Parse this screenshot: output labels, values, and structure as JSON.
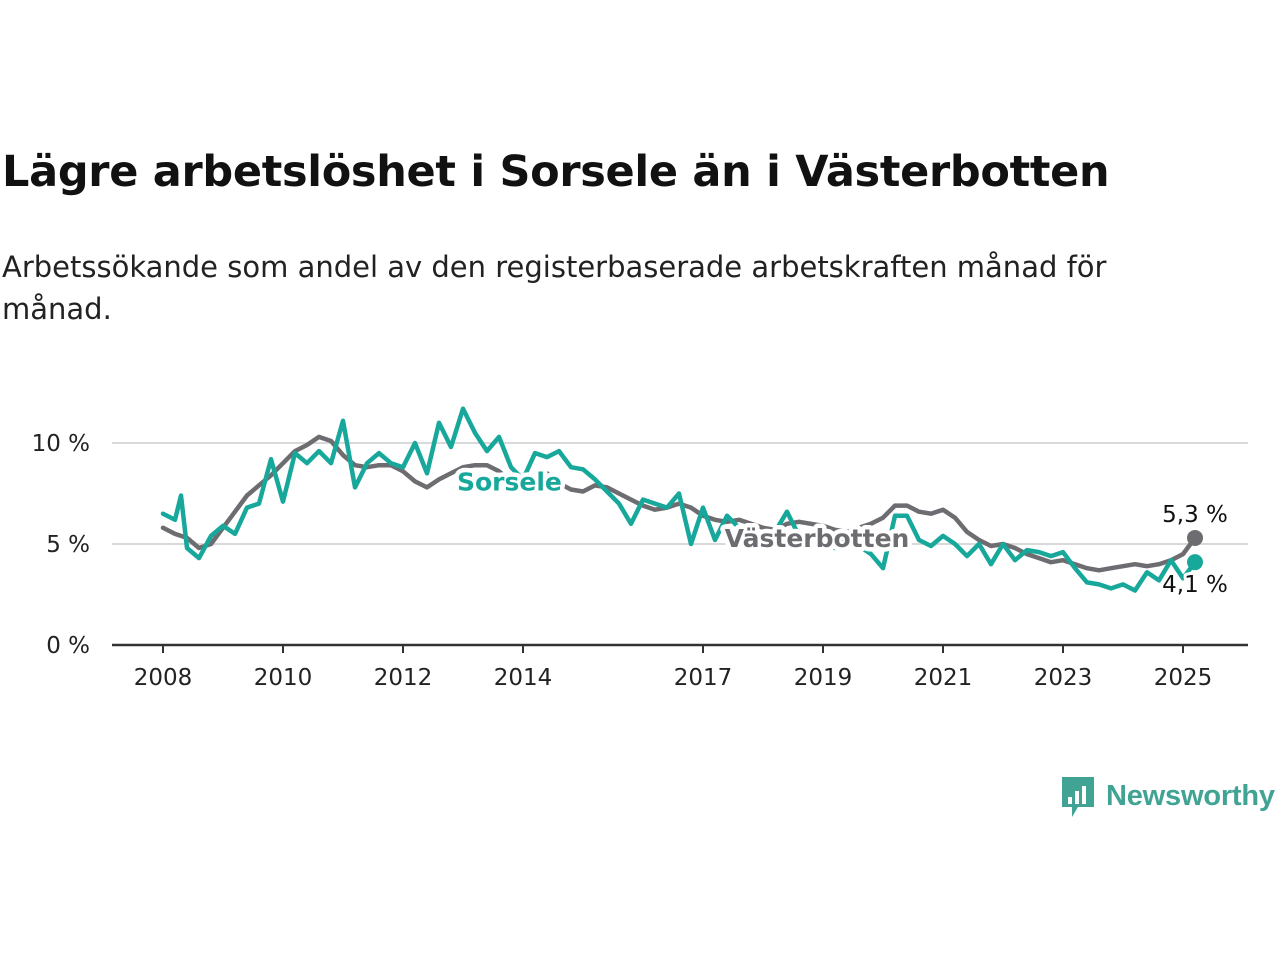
{
  "header": {
    "title": "Lägre arbetslöshet i Sorsele än i Västerbotten",
    "subtitle": "Arbetssökande som andel av den registerbaserade arbetskraften månad för månad."
  },
  "brand": {
    "name": "Newsworthy",
    "color": "#41a394",
    "icon": "newsworthy-logo-icon"
  },
  "colors": {
    "sorsele": "#17a89b",
    "vasterbotten": "#6d6c70",
    "grid": "#d9d9d9",
    "axis": "#333333"
  },
  "chart_data": {
    "type": "line",
    "title": "Lägre arbetslöshet i Sorsele än i Västerbotten",
    "subtitle": "Arbetssökande som andel av den registerbaserade arbetskraften månad för månad.",
    "xlim": [
      2008.0,
      2026.15
    ],
    "ylim": [
      0,
      11.5
    ],
    "x_ticks": [
      2008,
      2010,
      2012,
      2014,
      2017,
      2019,
      2021,
      2023,
      2025
    ],
    "y_ticks": [
      {
        "value": 0,
        "label": "0 %"
      },
      {
        "value": 5,
        "label": "5 %"
      },
      {
        "value": 10,
        "label": "10 %"
      }
    ],
    "grid": true,
    "legend": "inline labels",
    "series": [
      {
        "name": "Västerbotten",
        "color": "#6d6c70",
        "end_label": "5,3 %",
        "points": [
          [
            2008.0,
            5.8
          ],
          [
            2008.2,
            5.5
          ],
          [
            2008.4,
            5.3
          ],
          [
            2008.6,
            4.8
          ],
          [
            2008.8,
            5.0
          ],
          [
            2009.0,
            5.8
          ],
          [
            2009.2,
            6.6
          ],
          [
            2009.4,
            7.4
          ],
          [
            2009.6,
            7.9
          ],
          [
            2009.8,
            8.4
          ],
          [
            2010.0,
            9.0
          ],
          [
            2010.2,
            9.6
          ],
          [
            2010.4,
            9.9
          ],
          [
            2010.6,
            10.3
          ],
          [
            2010.8,
            10.1
          ],
          [
            2011.0,
            9.4
          ],
          [
            2011.2,
            8.9
          ],
          [
            2011.4,
            8.8
          ],
          [
            2011.6,
            8.9
          ],
          [
            2011.8,
            8.9
          ],
          [
            2012.0,
            8.6
          ],
          [
            2012.2,
            8.1
          ],
          [
            2012.4,
            7.8
          ],
          [
            2012.6,
            8.2
          ],
          [
            2012.8,
            8.5
          ],
          [
            2013.0,
            8.8
          ],
          [
            2013.2,
            8.9
          ],
          [
            2013.4,
            8.9
          ],
          [
            2013.6,
            8.6
          ],
          [
            2013.8,
            8.1
          ],
          [
            2014.0,
            8.1
          ],
          [
            2014.2,
            8.4
          ],
          [
            2014.4,
            8.5
          ],
          [
            2014.6,
            8.0
          ],
          [
            2014.8,
            7.7
          ],
          [
            2015.0,
            7.6
          ],
          [
            2015.2,
            7.9
          ],
          [
            2015.4,
            7.8
          ],
          [
            2015.6,
            7.5
          ],
          [
            2015.8,
            7.2
          ],
          [
            2016.0,
            6.9
          ],
          [
            2016.2,
            6.7
          ],
          [
            2016.4,
            6.8
          ],
          [
            2016.6,
            7.0
          ],
          [
            2016.8,
            6.8
          ],
          [
            2017.0,
            6.4
          ],
          [
            2017.2,
            6.2
          ],
          [
            2017.4,
            6.1
          ],
          [
            2017.6,
            6.2
          ],
          [
            2017.8,
            6.0
          ],
          [
            2018.0,
            5.8
          ],
          [
            2018.2,
            5.7
          ],
          [
            2018.4,
            6.0
          ],
          [
            2018.6,
            6.1
          ],
          [
            2018.8,
            6.0
          ],
          [
            2019.0,
            5.9
          ],
          [
            2019.2,
            5.7
          ],
          [
            2019.4,
            5.6
          ],
          [
            2019.6,
            5.8
          ],
          [
            2019.8,
            6.0
          ],
          [
            2020.0,
            6.3
          ],
          [
            2020.2,
            6.9
          ],
          [
            2020.4,
            6.9
          ],
          [
            2020.6,
            6.6
          ],
          [
            2020.8,
            6.5
          ],
          [
            2021.0,
            6.7
          ],
          [
            2021.2,
            6.3
          ],
          [
            2021.4,
            5.6
          ],
          [
            2021.6,
            5.2
          ],
          [
            2021.8,
            4.9
          ],
          [
            2022.0,
            5.0
          ],
          [
            2022.2,
            4.8
          ],
          [
            2022.4,
            4.5
          ],
          [
            2022.6,
            4.3
          ],
          [
            2022.8,
            4.1
          ],
          [
            2023.0,
            4.2
          ],
          [
            2023.2,
            4.0
          ],
          [
            2023.4,
            3.8
          ],
          [
            2023.6,
            3.7
          ],
          [
            2023.8,
            3.8
          ],
          [
            2024.0,
            3.9
          ],
          [
            2024.2,
            4.0
          ],
          [
            2024.4,
            3.9
          ],
          [
            2024.6,
            4.0
          ],
          [
            2024.8,
            4.2
          ],
          [
            2025.0,
            4.5
          ],
          [
            2025.2,
            5.3
          ]
        ]
      },
      {
        "name": "Sorsele",
        "color": "#17a89b",
        "end_label": "4,1 %",
        "points": [
          [
            2008.0,
            6.5
          ],
          [
            2008.2,
            6.2
          ],
          [
            2008.3,
            7.4
          ],
          [
            2008.4,
            4.8
          ],
          [
            2008.6,
            4.3
          ],
          [
            2008.8,
            5.4
          ],
          [
            2009.0,
            5.9
          ],
          [
            2009.2,
            5.5
          ],
          [
            2009.4,
            6.8
          ],
          [
            2009.6,
            7.0
          ],
          [
            2009.8,
            9.2
          ],
          [
            2010.0,
            7.1
          ],
          [
            2010.2,
            9.5
          ],
          [
            2010.4,
            9.0
          ],
          [
            2010.6,
            9.6
          ],
          [
            2010.8,
            9.0
          ],
          [
            2011.0,
            11.1
          ],
          [
            2011.2,
            7.8
          ],
          [
            2011.4,
            9.0
          ],
          [
            2011.6,
            9.5
          ],
          [
            2011.8,
            9.0
          ],
          [
            2012.0,
            8.8
          ],
          [
            2012.2,
            10.0
          ],
          [
            2012.4,
            8.5
          ],
          [
            2012.6,
            11.0
          ],
          [
            2012.8,
            9.8
          ],
          [
            2013.0,
            11.7
          ],
          [
            2013.2,
            10.5
          ],
          [
            2013.4,
            9.6
          ],
          [
            2013.6,
            10.3
          ],
          [
            2013.8,
            8.8
          ],
          [
            2014.0,
            8.2
          ],
          [
            2014.2,
            9.5
          ],
          [
            2014.4,
            9.3
          ],
          [
            2014.6,
            9.6
          ],
          [
            2014.8,
            8.8
          ],
          [
            2015.0,
            8.7
          ],
          [
            2015.2,
            8.2
          ],
          [
            2015.4,
            7.6
          ],
          [
            2015.6,
            7.0
          ],
          [
            2015.8,
            6.0
          ],
          [
            2016.0,
            7.2
          ],
          [
            2016.2,
            7.0
          ],
          [
            2016.4,
            6.8
          ],
          [
            2016.6,
            7.5
          ],
          [
            2016.8,
            5.0
          ],
          [
            2017.0,
            6.8
          ],
          [
            2017.2,
            5.2
          ],
          [
            2017.4,
            6.4
          ],
          [
            2017.6,
            5.8
          ],
          [
            2017.8,
            5.6
          ],
          [
            2018.0,
            5.0
          ],
          [
            2018.2,
            5.6
          ],
          [
            2018.4,
            6.6
          ],
          [
            2018.6,
            5.4
          ],
          [
            2018.8,
            4.8
          ],
          [
            2019.0,
            5.6
          ],
          [
            2019.2,
            4.8
          ],
          [
            2019.4,
            5.2
          ],
          [
            2019.6,
            4.9
          ],
          [
            2019.8,
            4.5
          ],
          [
            2020.0,
            3.8
          ],
          [
            2020.2,
            6.4
          ],
          [
            2020.4,
            6.4
          ],
          [
            2020.6,
            5.2
          ],
          [
            2020.8,
            4.9
          ],
          [
            2021.0,
            5.4
          ],
          [
            2021.2,
            5.0
          ],
          [
            2021.4,
            4.4
          ],
          [
            2021.6,
            5.0
          ],
          [
            2021.8,
            4.0
          ],
          [
            2022.0,
            5.0
          ],
          [
            2022.2,
            4.2
          ],
          [
            2022.4,
            4.7
          ],
          [
            2022.6,
            4.6
          ],
          [
            2022.8,
            4.4
          ],
          [
            2023.0,
            4.6
          ],
          [
            2023.2,
            3.8
          ],
          [
            2023.4,
            3.1
          ],
          [
            2023.6,
            3.0
          ],
          [
            2023.8,
            2.8
          ],
          [
            2024.0,
            3.0
          ],
          [
            2024.2,
            2.7
          ],
          [
            2024.4,
            3.6
          ],
          [
            2024.6,
            3.2
          ],
          [
            2024.8,
            4.2
          ],
          [
            2025.0,
            3.3
          ],
          [
            2025.2,
            4.1
          ]
        ]
      }
    ]
  }
}
